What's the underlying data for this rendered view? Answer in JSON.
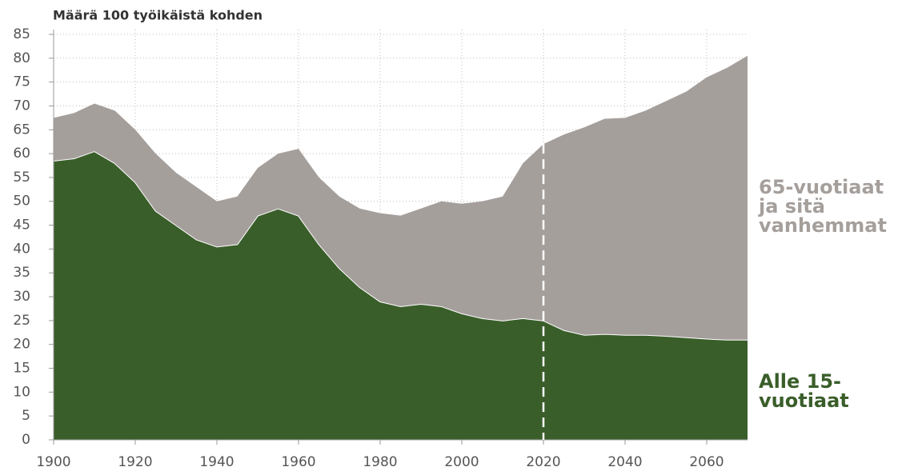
{
  "chart_data": {
    "type": "stacked_area",
    "y_axis_label": "Määrä 100 työikäistä kohden",
    "x": [
      1900,
      1905,
      1910,
      1915,
      1920,
      1925,
      1930,
      1935,
      1940,
      1945,
      1950,
      1955,
      1960,
      1965,
      1970,
      1975,
      1980,
      1985,
      1990,
      1995,
      2000,
      2005,
      2010,
      2015,
      2020,
      2025,
      2030,
      2035,
      2040,
      2045,
      2050,
      2055,
      2060,
      2065,
      2070
    ],
    "series": [
      {
        "name": "Alle 15-vuotiaat",
        "color": "#3a5e2a",
        "values": [
          58.5,
          59,
          60.5,
          58,
          54,
          48,
          45,
          42,
          40.5,
          41,
          47,
          48.5,
          47,
          41,
          36,
          32,
          29,
          28,
          28.5,
          28,
          26.5,
          25.5,
          25,
          25.5,
          25,
          23,
          22,
          22.2,
          22,
          22,
          21.8,
          21.5,
          21.2,
          21,
          21
        ]
      },
      {
        "name": "65-vuotiaat ja sitä vanhemmat",
        "color": "#a59f9c",
        "values": [
          9,
          9.5,
          10,
          11,
          11,
          12,
          11,
          11,
          9.5,
          10,
          10,
          11.5,
          14,
          14,
          15,
          16.5,
          18.5,
          19,
          20,
          22,
          23,
          24.5,
          26,
          32.5,
          37,
          41,
          43.5,
          45.1,
          45.5,
          47,
          49.2,
          51.5,
          54.8,
          57,
          59.5
        ]
      }
    ],
    "xlim": [
      1900,
      2070
    ],
    "xticks": [
      1900,
      1920,
      1940,
      1960,
      1980,
      2000,
      2020,
      2040,
      2060
    ],
    "ylim": [
      0,
      86
    ],
    "yticks": [
      0,
      5,
      10,
      15,
      20,
      25,
      30,
      35,
      40,
      45,
      50,
      55,
      60,
      65,
      70,
      75,
      80,
      85
    ],
    "grid": true
  }
}
